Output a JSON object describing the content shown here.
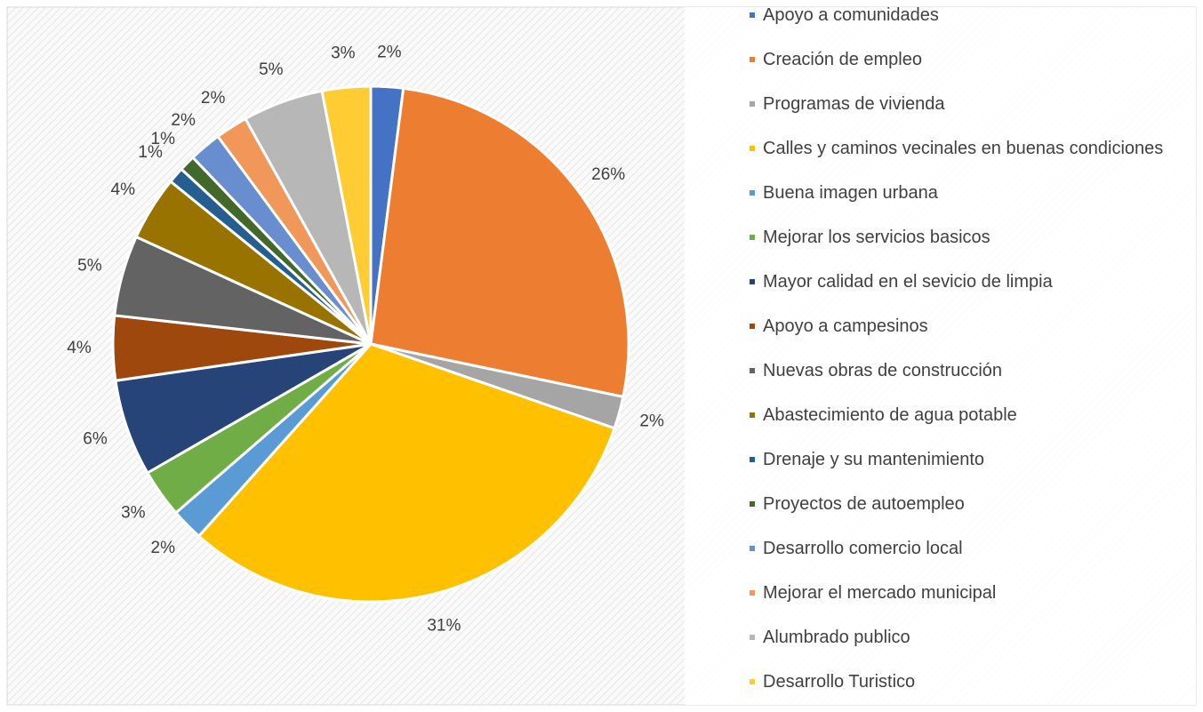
{
  "chart_data": {
    "type": "pie",
    "categories": [
      "Apoyo a comunidades",
      "Creación de empleo",
      "Programas de vivienda",
      "Calles y caminos vecinales en buenas condiciones",
      "Buena imagen urbana",
      "Mejorar los servicios basicos",
      "Mayor calidad en el sevicio de limpia",
      "Apoyo a campesinos",
      "Nuevas obras de construcción",
      "Abastecimiento de agua potable",
      "Drenaje y su mantenimiento",
      "Proyectos de autoempleo",
      "Desarrollo comercio local",
      "Mejorar el mercado municipal",
      "Alumbrado publico",
      "Desarrollo Turistico"
    ],
    "values": [
      2,
      26,
      2,
      31,
      2,
      3,
      6,
      4,
      5,
      4,
      1,
      1,
      2,
      2,
      5,
      3
    ],
    "value_labels": [
      "2%",
      "26%",
      "2%",
      "31%",
      "2%",
      "3%",
      "6%",
      "4%",
      "5%",
      "4%",
      "1%",
      "1%",
      "2%",
      "2%",
      "5%",
      "3%"
    ],
    "colors": [
      "#4472c4",
      "#ed7d31",
      "#a5a5a5",
      "#ffc000",
      "#5b9bd5",
      "#70ad47",
      "#264478",
      "#9e480e",
      "#636363",
      "#997300",
      "#255e91",
      "#43682b",
      "#698ed0",
      "#f1975a",
      "#b7b7b7",
      "#ffcd33"
    ],
    "legend": "right"
  }
}
